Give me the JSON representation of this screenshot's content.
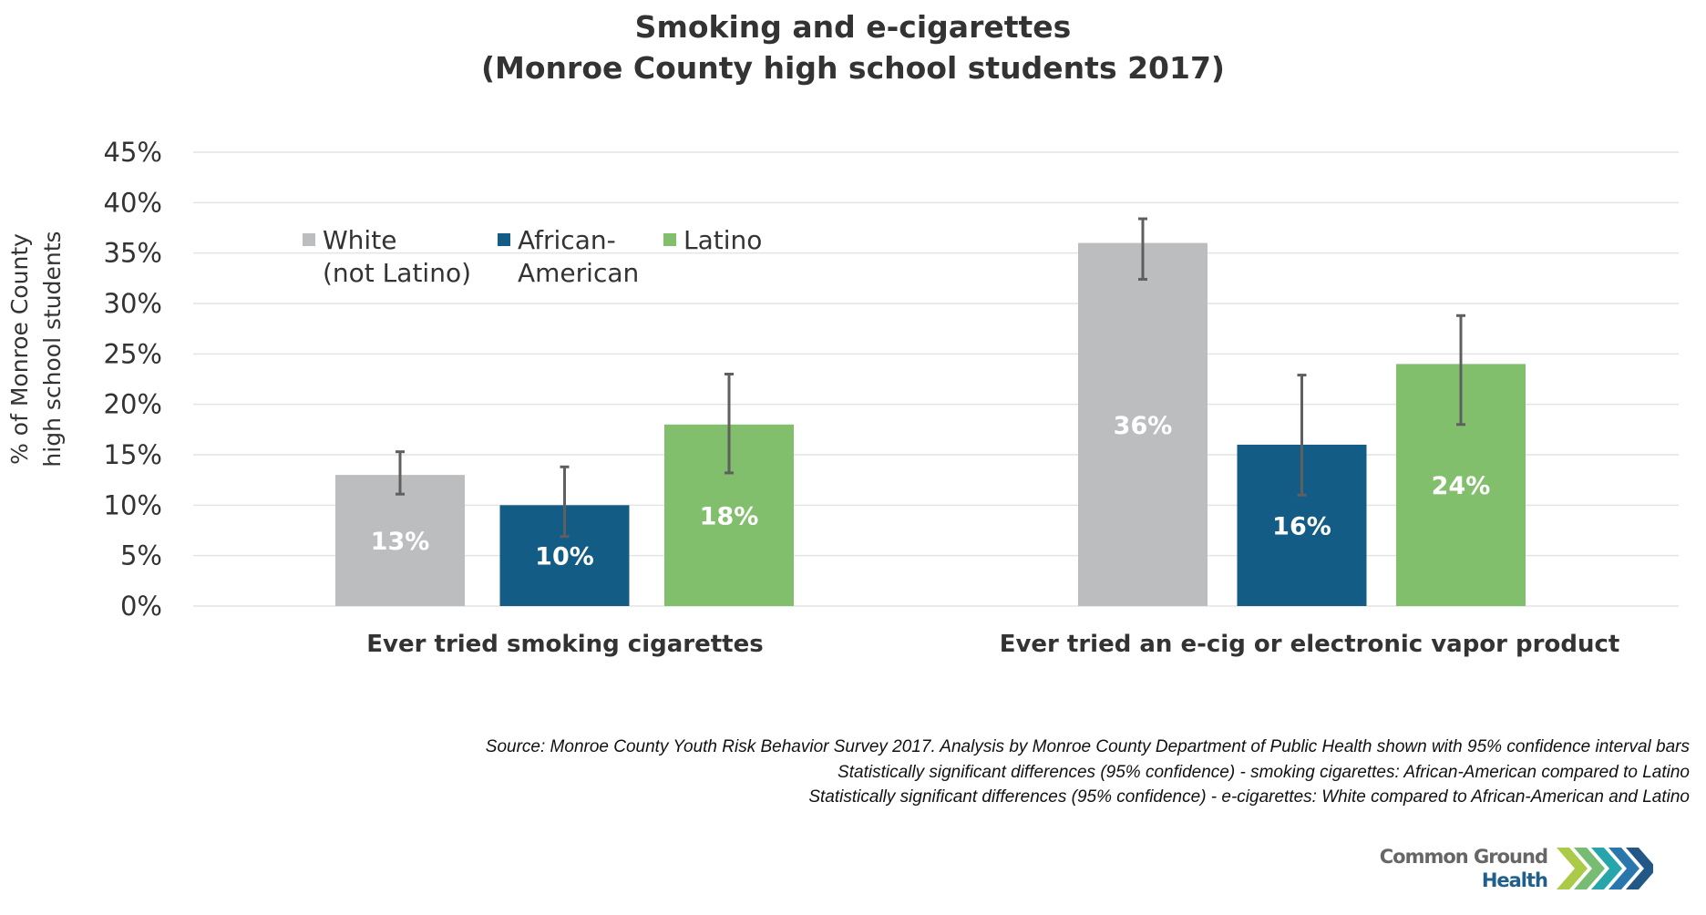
{
  "title": {
    "line1": "Smoking and e-cigarettes",
    "line2": "(Monroe County high school students 2017)"
  },
  "chart_data": {
    "type": "bar",
    "title": "Smoking and e-cigarettes (Monroe County high school students 2017)",
    "xlabel": "",
    "ylabel_lines": [
      "% of Monroe County",
      "high school students"
    ],
    "ylim": [
      0,
      45
    ],
    "y_ticks": [
      0,
      5,
      10,
      15,
      20,
      25,
      30,
      35,
      40,
      45
    ],
    "y_tick_labels": [
      "0%",
      "5%",
      "10%",
      "15%",
      "20%",
      "25%",
      "30%",
      "35%",
      "40%",
      "45%"
    ],
    "grid": true,
    "legend_position": "top-left",
    "categories": [
      "Ever tried smoking cigarettes",
      "Ever tried an e-cig or electronic vapor product"
    ],
    "series": [
      {
        "name": "White (not Latino)",
        "legend_lines": [
          "White",
          "(not Latino)"
        ],
        "color": "#bcbdbf",
        "values": [
          13,
          36
        ],
        "labels": [
          "13%",
          "36%"
        ],
        "ci_low": [
          11.1,
          32.4
        ],
        "ci_high": [
          15.3,
          38.4
        ]
      },
      {
        "name": "African-American",
        "legend_lines": [
          "African-",
          "American"
        ],
        "color": "#135c85",
        "values": [
          10,
          16
        ],
        "labels": [
          "10%",
          "16%"
        ],
        "ci_low": [
          6.9,
          11.0
        ],
        "ci_high": [
          13.8,
          22.9
        ]
      },
      {
        "name": "Latino",
        "legend_lines": [
          "Latino"
        ],
        "color": "#82bf6d",
        "values": [
          18,
          24
        ],
        "labels": [
          "18%",
          "24%"
        ],
        "ci_low": [
          13.2,
          18.0
        ],
        "ci_high": [
          23.0,
          28.8
        ]
      }
    ],
    "error_bar_color": "#5f5f5f",
    "grid_color": "#e4e4e4"
  },
  "notes": [
    "Source: Monroe County Youth Risk Behavior Survey 2017.  Analysis by Monroe County Department of Public Health shown with 95% confidence interval bars",
    "Statistically significant differences (95% confidence) - smoking cigarettes: African-American compared to Latino",
    "Statistically significant differences (95% confidence) - e-cigarettes: White compared to African-American and Latino"
  ],
  "logo": {
    "line1": "Common Ground",
    "line2": "Health",
    "line1_color": "#666666",
    "line2_color": "#1f5f8c",
    "chevron_colors": [
      "#a6c73d",
      "#70b86a",
      "#1aa0a6",
      "#1f70aa",
      "#174f80"
    ]
  }
}
